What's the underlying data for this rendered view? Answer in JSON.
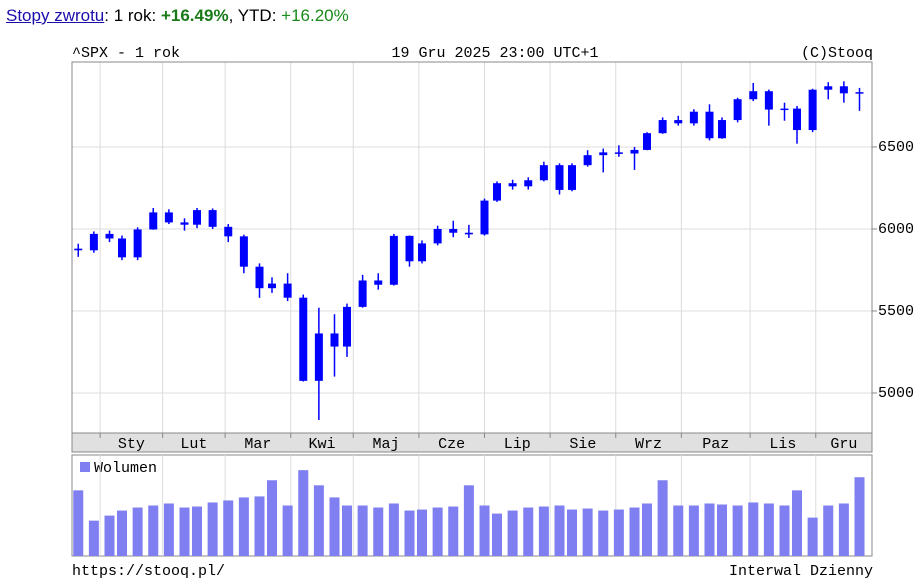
{
  "header": {
    "link": "Stopy zwrotu",
    "period_label": ": 1 rok:",
    "period_return": "+16.49%",
    "ytd_label": ", YTD:",
    "ytd_return": "+16.20%"
  },
  "chart_data": {
    "type": "candlestick",
    "title": "^SPX - 1 rok",
    "subtitle": "19 Gru 2025 23:00 UTC+1",
    "source": "(C)Stooq",
    "url": "https://stooq.pl/",
    "interval": "Interwal Dzienny",
    "color": "#0000ff",
    "grid": true,
    "xlim": [
      -2,
      254
    ],
    "xticks": [
      {
        "value": 7,
        "label": "Sty"
      },
      {
        "value": 27,
        "label": "Lut"
      },
      {
        "value": 47,
        "label": "Mar"
      },
      {
        "value": 68,
        "label": "Kwi"
      },
      {
        "value": 88,
        "label": "Maj"
      },
      {
        "value": 109,
        "label": "Cze"
      },
      {
        "value": 130,
        "label": "Lip"
      },
      {
        "value": 151,
        "label": "Sie"
      },
      {
        "value": 172,
        "label": "Wrz"
      },
      {
        "value": 193,
        "label": "Paz"
      },
      {
        "value": 215,
        "label": "Lis"
      },
      {
        "value": 236,
        "label": "Gru"
      }
    ],
    "ylim": [
      4756,
      7018
    ],
    "yticks": [
      5000,
      5500,
      6000,
      6500
    ],
    "x": [
      0,
      5,
      10,
      14,
      19,
      24,
      29,
      34,
      38,
      43,
      48,
      53,
      58,
      62,
      67,
      72,
      77,
      82,
      86,
      91,
      96,
      101,
      106,
      110,
      115,
      120,
      125,
      130,
      134,
      139,
      144,
      149,
      154,
      158,
      163,
      168,
      173,
      178,
      182,
      187,
      192,
      197,
      202,
      206,
      211,
      216,
      221,
      226,
      230,
      235,
      240,
      245,
      250
    ],
    "open": [
      5880,
      5870,
      5970,
      5942,
      5827,
      5997,
      6101,
      6040,
      6026,
      6115,
      6013,
      5955,
      5770,
      5639,
      5667,
      5581,
      5074,
      5363,
      5283,
      5525,
      5686,
      5660,
      5958,
      5803,
      5912,
      6000,
      5977,
      5967,
      6173,
      6279,
      6260,
      6297,
      6389,
      6238,
      6389,
      6450,
      6467,
      6460,
      6482,
      6584,
      6664,
      6644,
      6715,
      6553,
      6664,
      6791,
      6840,
      6728,
      6734,
      6603,
      6849,
      6870,
      6827
    ],
    "high": [
      5910,
      5985,
      5990,
      5960,
      6010,
      6128,
      6120,
      6065,
      6128,
      6125,
      6030,
      5965,
      5790,
      5705,
      5730,
      5600,
      5520,
      5480,
      5545,
      5720,
      5730,
      5970,
      5960,
      5930,
      6020,
      6050,
      6025,
      6185,
      6290,
      6300,
      6315,
      6410,
      6400,
      6400,
      6480,
      6490,
      6510,
      6500,
      6590,
      6680,
      6690,
      6730,
      6760,
      6680,
      6800,
      6890,
      6850,
      6770,
      6750,
      6855,
      6895,
      6900,
      6860
    ],
    "low": [
      5830,
      5855,
      5920,
      5810,
      5810,
      5995,
      6030,
      5990,
      6005,
      6000,
      5920,
      5730,
      5580,
      5610,
      5560,
      5070,
      4835,
      5100,
      5220,
      5520,
      5630,
      5655,
      5770,
      5790,
      5900,
      5950,
      5945,
      5960,
      6165,
      6240,
      6240,
      6290,
      6210,
      6230,
      6380,
      6345,
      6440,
      6360,
      6480,
      6580,
      6630,
      6630,
      6540,
      6550,
      6650,
      6780,
      6630,
      6660,
      6520,
      6590,
      6790,
      6770,
      6720
    ],
    "close": [
      5870,
      5970,
      5942,
      5827,
      5997,
      6101,
      6040,
      6026,
      6115,
      6013,
      5955,
      5770,
      5639,
      5667,
      5581,
      5074,
      5363,
      5283,
      5525,
      5686,
      5660,
      5958,
      5803,
      5912,
      6000,
      5977,
      5967,
      6173,
      6279,
      6260,
      6297,
      6389,
      6238,
      6389,
      6450,
      6467,
      6460,
      6482,
      6584,
      6664,
      6644,
      6715,
      6553,
      6664,
      6791,
      6840,
      6728,
      6734,
      6603,
      6849,
      6870,
      6827,
      6834
    ],
    "volume_name": "Wolumen",
    "volume_color": "#7f7ff2",
    "volume_ylim": [
      0,
      10
    ],
    "volume": [
      6.5,
      3.5,
      4.0,
      4.5,
      4.8,
      5.0,
      5.2,
      4.8,
      4.9,
      5.3,
      5.5,
      5.8,
      5.9,
      7.5,
      5.0,
      8.5,
      7.0,
      5.8,
      5.0,
      5.0,
      4.8,
      5.2,
      4.5,
      4.6,
      4.8,
      4.9,
      7.0,
      5.0,
      4.2,
      4.5,
      4.8,
      4.9,
      5.0,
      4.6,
      4.7,
      4.5,
      4.6,
      4.8,
      5.2,
      7.5,
      5.0,
      5.0,
      5.2,
      5.1,
      5.0,
      5.3,
      5.2,
      5.0,
      6.5,
      3.8,
      5.0,
      5.2,
      7.8
    ]
  }
}
